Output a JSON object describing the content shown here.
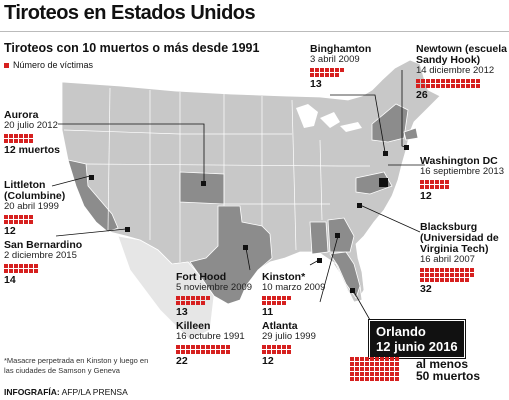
{
  "title": "Tiroteos en Estados Unidos",
  "subtitle": "Tiroteos con 10 muertos o más desde 1991",
  "legend": "Número de víctimas",
  "colors": {
    "victims": "#d6201f",
    "land": "#c8c8c8",
    "highlight": "#8c8c8c",
    "water": "#ffffff"
  },
  "events": [
    {
      "id": "binghamton",
      "name": "Binghamton",
      "date": "3 abril 2009",
      "count_label": "13",
      "victims": 13
    },
    {
      "id": "newtown",
      "name": "Newtown (escuela Sandy Hook)",
      "date": "14 diciembre 2012",
      "count_label": "26",
      "victims": 26
    },
    {
      "id": "aurora",
      "name": "Aurora",
      "date": "20 julio 2012",
      "count_label": "12 muertos",
      "victims": 12
    },
    {
      "id": "washington",
      "name": "Washington DC",
      "date": "16 septiembre 2013",
      "count_label": "12",
      "victims": 12
    },
    {
      "id": "littleton",
      "name": "Littleton (Columbine)",
      "date": "20 abril 1999",
      "count_label": "12",
      "victims": 12
    },
    {
      "id": "sanbernardino",
      "name": "San Bernardino",
      "date": "2 diciembre 2015",
      "count_label": "14",
      "victims": 14
    },
    {
      "id": "blacksburg",
      "name": "Blacksburg (Universidad de Virginia Tech)",
      "date": "16 abril 2007",
      "count_label": "32",
      "victims": 32
    },
    {
      "id": "forthood",
      "name": "Fort Hood",
      "date": "5 noviembre 2009",
      "count_label": "13",
      "victims": 13
    },
    {
      "id": "kinston",
      "name": "Kinston*",
      "date": "10 marzo 2009",
      "count_label": "11",
      "victims": 11
    },
    {
      "id": "killeen",
      "name": "Killeen",
      "date": "16 octubre 1991",
      "count_label": "22",
      "victims": 22
    },
    {
      "id": "atlanta",
      "name": "Atlanta",
      "date": "29 julio 1999",
      "count_label": "12",
      "victims": 12
    }
  ],
  "orlando": {
    "name": "Orlando",
    "date": "12 junio 2016",
    "count_label_1": "al menos",
    "count_label_2": "50 muertos",
    "victims": 50
  },
  "footnote": "*Masacre perpetrada en Kinston y luego en las ciudades de Samson y Geneva",
  "credit_label": "INFOGRAFÍA:",
  "credit_value": " AFP/LA PRENSA"
}
